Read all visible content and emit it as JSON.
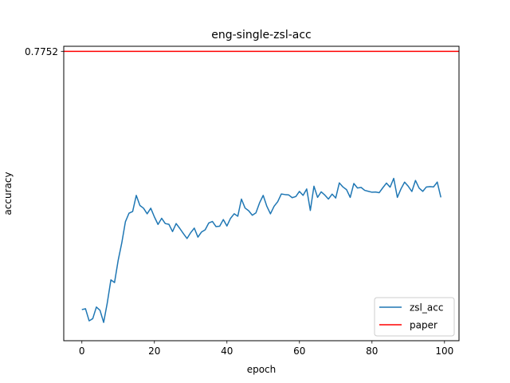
{
  "chart_data": {
    "type": "line",
    "title": "eng-single-zsl-acc",
    "xlabel": "epoch",
    "ylabel": "accuracy",
    "xlim": [
      -5,
      104
    ],
    "ylim": [
      0.5,
      0.78
    ],
    "x_ticks": [
      "0",
      "20",
      "40",
      "60",
      "80",
      "100"
    ],
    "x_tick_values": [
      0,
      20,
      40,
      60,
      80,
      100
    ],
    "y_ticks": [
      "0.7752"
    ],
    "y_tick_values": [
      0.7752
    ],
    "legend_position": "lower right",
    "series": [
      {
        "name": "zsl_acc",
        "color": "#1f77b4",
        "x": [
          0,
          1,
          2,
          3,
          4,
          5,
          6,
          7,
          8,
          9,
          10,
          11,
          12,
          13,
          14,
          15,
          16,
          17,
          18,
          19,
          20,
          21,
          22,
          23,
          24,
          25,
          26,
          27,
          28,
          29,
          30,
          31,
          32,
          33,
          34,
          35,
          36,
          37,
          38,
          39,
          40,
          41,
          42,
          43,
          44,
          45,
          46,
          47,
          48,
          49,
          50,
          51,
          52,
          53,
          54,
          55,
          56,
          57,
          58,
          59,
          60,
          61,
          62,
          63,
          64,
          65,
          66,
          67,
          68,
          69,
          70,
          71,
          72,
          73,
          74,
          75,
          76,
          77,
          78,
          79,
          80,
          81,
          82,
          83,
          84,
          85,
          86,
          87,
          88,
          89,
          90,
          91,
          92,
          93,
          94,
          95,
          96,
          97,
          98,
          99
        ],
        "values": [
          0.5296,
          0.5304,
          0.5189,
          0.521,
          0.532,
          0.5289,
          0.5174,
          0.5359,
          0.5579,
          0.5553,
          0.5763,
          0.593,
          0.6131,
          0.6213,
          0.6229,
          0.6382,
          0.6286,
          0.626,
          0.6207,
          0.626,
          0.6177,
          0.6106,
          0.6164,
          0.6114,
          0.6107,
          0.6038,
          0.6114,
          0.6068,
          0.6018,
          0.5972,
          0.6027,
          0.6071,
          0.5985,
          0.6034,
          0.6055,
          0.612,
          0.6134,
          0.6085,
          0.6089,
          0.6152,
          0.6091,
          0.6164,
          0.6207,
          0.6184,
          0.6347,
          0.6262,
          0.6236,
          0.6193,
          0.6216,
          0.6311,
          0.6382,
          0.6279,
          0.6207,
          0.6278,
          0.6322,
          0.6395,
          0.639,
          0.6387,
          0.636,
          0.6371,
          0.642,
          0.6382,
          0.6443,
          0.6239,
          0.6469,
          0.6363,
          0.6416,
          0.6385,
          0.6347,
          0.6394,
          0.6357,
          0.6501,
          0.6462,
          0.6436,
          0.6363,
          0.6495,
          0.6452,
          0.6458,
          0.643,
          0.6421,
          0.6412,
          0.6414,
          0.6408,
          0.6455,
          0.6499,
          0.646,
          0.6544,
          0.6363,
          0.6444,
          0.6508,
          0.6469,
          0.6419,
          0.6524,
          0.6452,
          0.642,
          0.6462,
          0.6465,
          0.6463,
          0.6509,
          0.6363
        ]
      },
      {
        "name": "paper",
        "color": "#ff0000",
        "type": "hline",
        "y": 0.7752
      }
    ]
  }
}
